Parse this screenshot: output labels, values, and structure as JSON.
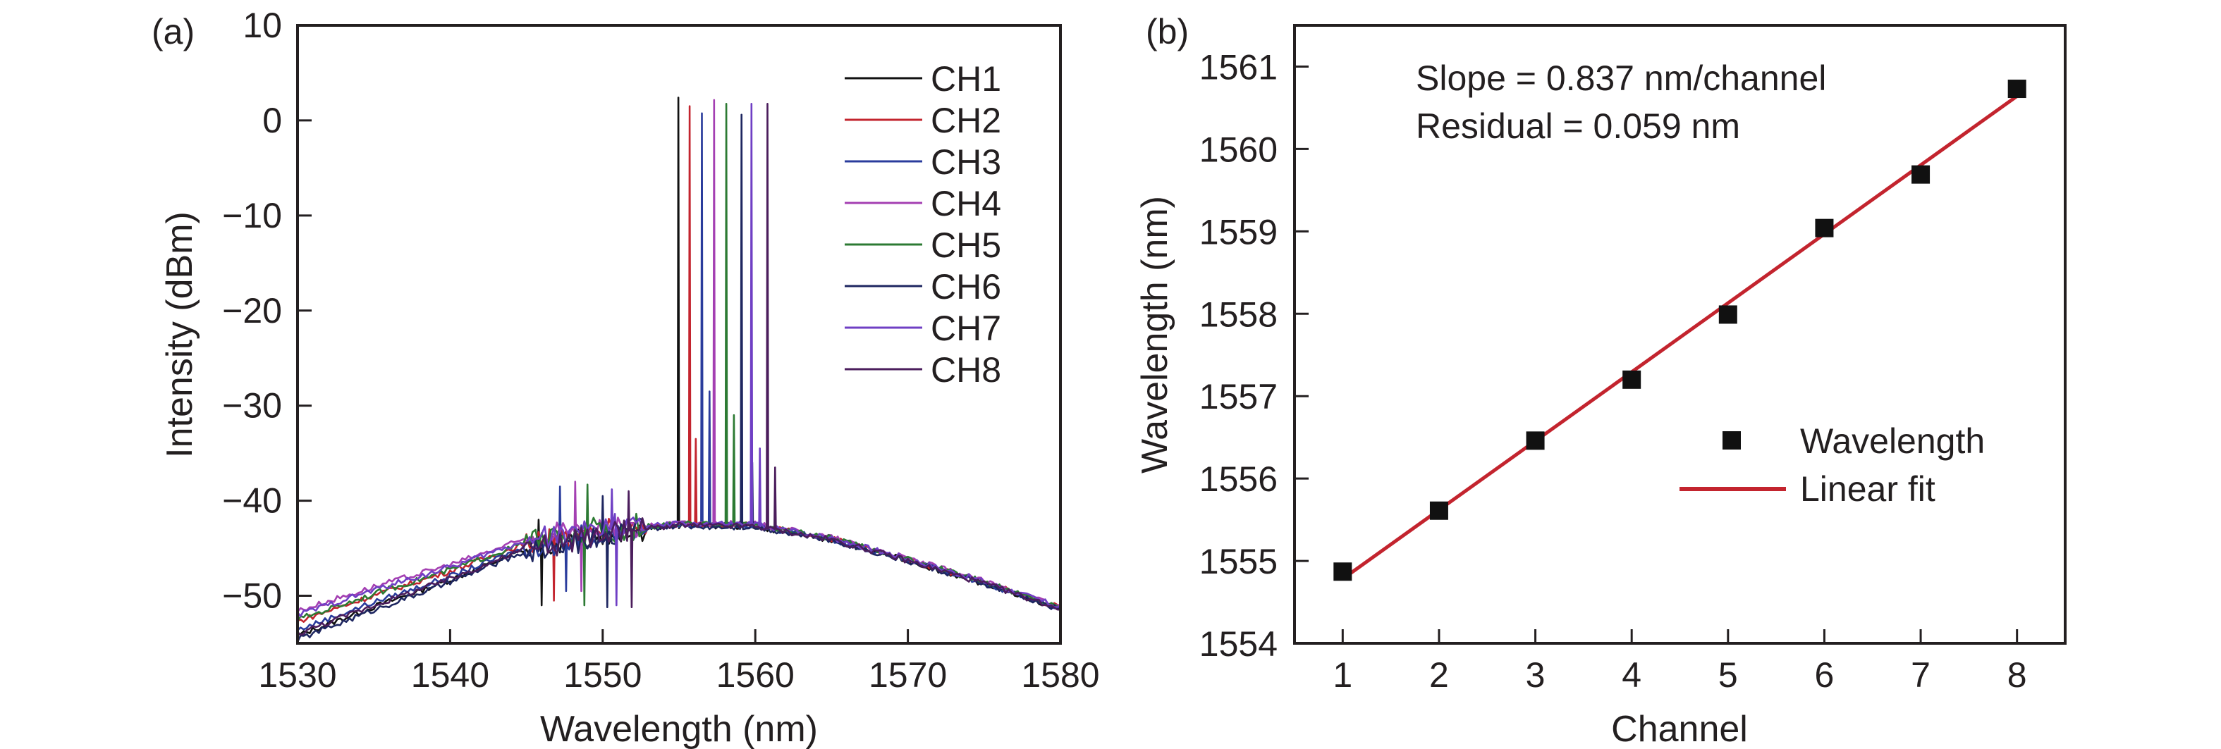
{
  "chart_data": [
    {
      "panel_label": "(a)",
      "type": "line",
      "xlabel": "Wavelength (nm)",
      "ylabel": "Intensity (dBm)",
      "xlim": [
        1530,
        1580
      ],
      "ylim": [
        -55,
        10
      ],
      "xticks": [
        "1530",
        "1540",
        "1550",
        "1560",
        "1570",
        "1580"
      ],
      "yticks": [
        "10",
        "0",
        "−10",
        "−20",
        "−30",
        "−40",
        "−50"
      ],
      "ytick_values": [
        10,
        0,
        -10,
        -20,
        -30,
        -40,
        -50
      ],
      "xtick_values": [
        1530,
        1540,
        1550,
        1560,
        1570,
        1580
      ],
      "legend_position": "top-right",
      "baseline_x": [
        1530,
        1535,
        1540,
        1545,
        1550,
        1555,
        1560,
        1565,
        1570,
        1575,
        1580
      ],
      "series": [
        {
          "name": "CH1",
          "color": "#111111",
          "peak_wavelength": 1554.96,
          "peak_intensity": 2.4,
          "baseline_offset": -1.2,
          "side_features": [
            [
              1545.8,
              -42
            ],
            [
              1546.0,
              -51
            ]
          ]
        },
        {
          "name": "CH2",
          "color": "#c3242e",
          "peak_wavelength": 1555.7,
          "peak_intensity": 1.5,
          "baseline_offset": 0.3,
          "side_features": [
            [
              1546.5,
              -43
            ],
            [
              1546.8,
              -50.5
            ],
            [
              1556.1,
              -33.5
            ]
          ]
        },
        {
          "name": "CH3",
          "color": "#2a3c9c",
          "peak_wavelength": 1556.5,
          "peak_intensity": 0.75,
          "baseline_offset": -0.6,
          "side_features": [
            [
              1547.2,
              -38.5
            ],
            [
              1547.6,
              -49.5
            ],
            [
              1557.0,
              -28.5
            ]
          ]
        },
        {
          "name": "CH4",
          "color": "#a43fb2",
          "peak_wavelength": 1557.3,
          "peak_intensity": 2.15,
          "baseline_offset": 1.4,
          "side_features": [
            [
              1548.2,
              -38
            ],
            [
              1548.6,
              -49.5
            ]
          ]
        },
        {
          "name": "CH5",
          "color": "#2c7a33",
          "peak_wavelength": 1558.1,
          "peak_intensity": 1.75,
          "baseline_offset": 0.5,
          "side_features": [
            [
              1549.0,
              -38.3
            ],
            [
              1548.8,
              -51
            ],
            [
              1558.6,
              -31
            ]
          ]
        },
        {
          "name": "CH6",
          "color": "#1e2660",
          "peak_wavelength": 1559.1,
          "peak_intensity": 0.6,
          "baseline_offset": -1.6,
          "side_features": [
            [
              1550.0,
              -39.5
            ],
            [
              1550.3,
              -51.2
            ],
            [
              1559.8,
              -36
            ]
          ]
        },
        {
          "name": "CH7",
          "color": "#6f3fc4",
          "peak_wavelength": 1559.75,
          "peak_intensity": 1.75,
          "baseline_offset": 1.0,
          "side_features": [
            [
              1550.6,
              -38.8
            ],
            [
              1550.9,
              -51
            ],
            [
              1560.3,
              -34.5
            ]
          ]
        },
        {
          "name": "CH8",
          "color": "#4b1d5c",
          "peak_wavelength": 1560.8,
          "peak_intensity": 1.75,
          "baseline_offset": -1.0,
          "side_features": [
            [
              1551.7,
              -39
            ],
            [
              1551.9,
              -51.2
            ],
            [
              1561.3,
              -36.5
            ]
          ]
        }
      ],
      "baseline_y": [
        -53,
        -50.2,
        -47.6,
        -44.6,
        -43.2,
        -42.5,
        -42.6,
        -44,
        -46.2,
        -48.6,
        -51.3
      ]
    },
    {
      "panel_label": "(b)",
      "type": "scatter",
      "xlabel": "Channel",
      "ylabel": "Wavelength (nm)",
      "xlim": [
        0.5,
        8.5
      ],
      "ylim": [
        1554,
        1561.5
      ],
      "xticks": [
        "1",
        "2",
        "3",
        "4",
        "5",
        "6",
        "7",
        "8"
      ],
      "xtick_values": [
        1,
        2,
        3,
        4,
        5,
        6,
        7,
        8
      ],
      "yticks": [
        "1554",
        "1555",
        "1556",
        "1557",
        "1558",
        "1559",
        "1560",
        "1561"
      ],
      "ytick_values": [
        1554,
        1555,
        1556,
        1557,
        1558,
        1559,
        1560,
        1561
      ],
      "x": [
        1,
        2,
        3,
        4,
        5,
        6,
        7,
        8
      ],
      "y": [
        1554.87,
        1555.61,
        1556.46,
        1557.2,
        1557.99,
        1559.04,
        1559.69,
        1560.73
      ],
      "fit": {
        "slope": 0.837,
        "intercept": 1553.945,
        "color": "#c3242e"
      },
      "annotations": [
        "Slope = 0.837 nm/channel",
        "Residual = 0.059 nm"
      ],
      "legend": [
        "Wavelength",
        "Linear fit"
      ],
      "legend_position": "center-right",
      "marker_color": "#111111"
    }
  ]
}
